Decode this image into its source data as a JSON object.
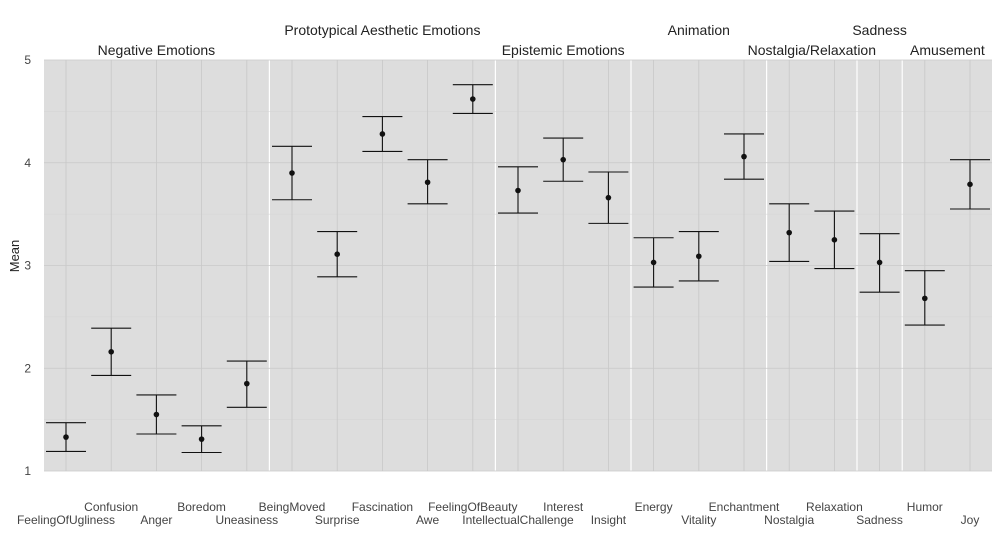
{
  "chart_data": {
    "type": "scatter",
    "ylabel": "Mean",
    "xlabel": "",
    "ylim": [
      1,
      5
    ],
    "yticks": [
      "1",
      "2",
      "3",
      "4",
      "5"
    ],
    "grid": true,
    "categories": [
      "FeelingOfUgliness",
      "Confusion",
      "Anger",
      "Boredom",
      "Uneasiness",
      "BeingMoved",
      "Surprise",
      "Fascination",
      "Awe",
      "FeelingOfBeauty",
      "IntellectualChallenge",
      "Interest",
      "Insight",
      "Energy",
      "Vitality",
      "Enchantment",
      "Nostalgia",
      "Relaxation",
      "Sadness",
      "Humor",
      "Joy"
    ],
    "means": [
      1.33,
      2.16,
      1.55,
      1.31,
      1.85,
      3.9,
      3.11,
      4.28,
      3.81,
      4.62,
      3.73,
      4.03,
      3.66,
      3.03,
      3.09,
      4.06,
      3.32,
      3.25,
      3.03,
      2.68,
      3.79
    ],
    "lower": [
      1.19,
      1.93,
      1.36,
      1.18,
      1.62,
      3.64,
      2.89,
      4.11,
      3.6,
      4.48,
      3.51,
      3.82,
      3.41,
      2.79,
      2.85,
      3.84,
      3.04,
      2.97,
      2.74,
      2.42,
      3.55
    ],
    "upper": [
      1.47,
      2.39,
      1.74,
      1.44,
      2.07,
      4.16,
      3.33,
      4.45,
      4.03,
      4.76,
      3.96,
      4.24,
      3.91,
      3.27,
      3.33,
      4.28,
      3.6,
      3.53,
      3.31,
      2.95,
      4.03
    ],
    "groups": [
      {
        "label": "Negative Emotions",
        "start": 0,
        "end": 4
      },
      {
        "label": "Prototypical Aesthetic Emotions",
        "start": 5,
        "end": 9
      },
      {
        "label": "Epistemic Emotions",
        "start": 10,
        "end": 12
      },
      {
        "label": "Animation",
        "start": 13,
        "end": 15
      },
      {
        "label": "Nostalgia/Relaxation",
        "start": 16,
        "end": 17
      },
      {
        "label": "Sadness",
        "start": 18,
        "end": 18
      },
      {
        "label": "Amusement",
        "start": 19,
        "end": 20
      }
    ]
  }
}
